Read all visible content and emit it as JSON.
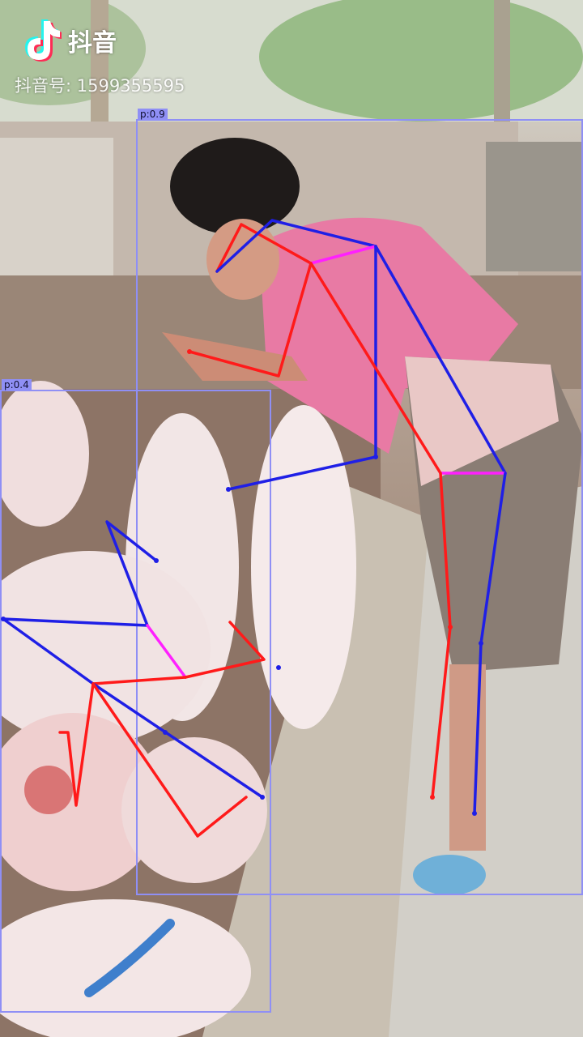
{
  "watermark": {
    "app_name": "抖音",
    "account_label": "抖音号: 1599355595"
  },
  "detections": [
    {
      "id": "person-1",
      "label": "p:0.9"
    },
    {
      "id": "person-2",
      "label": "p:0.4"
    }
  ],
  "colors": {
    "box": "#8f8ff5",
    "limb_left": "#ff1a1a",
    "limb_right": "#1f1fe6",
    "limb_center": "#ff20ff"
  }
}
